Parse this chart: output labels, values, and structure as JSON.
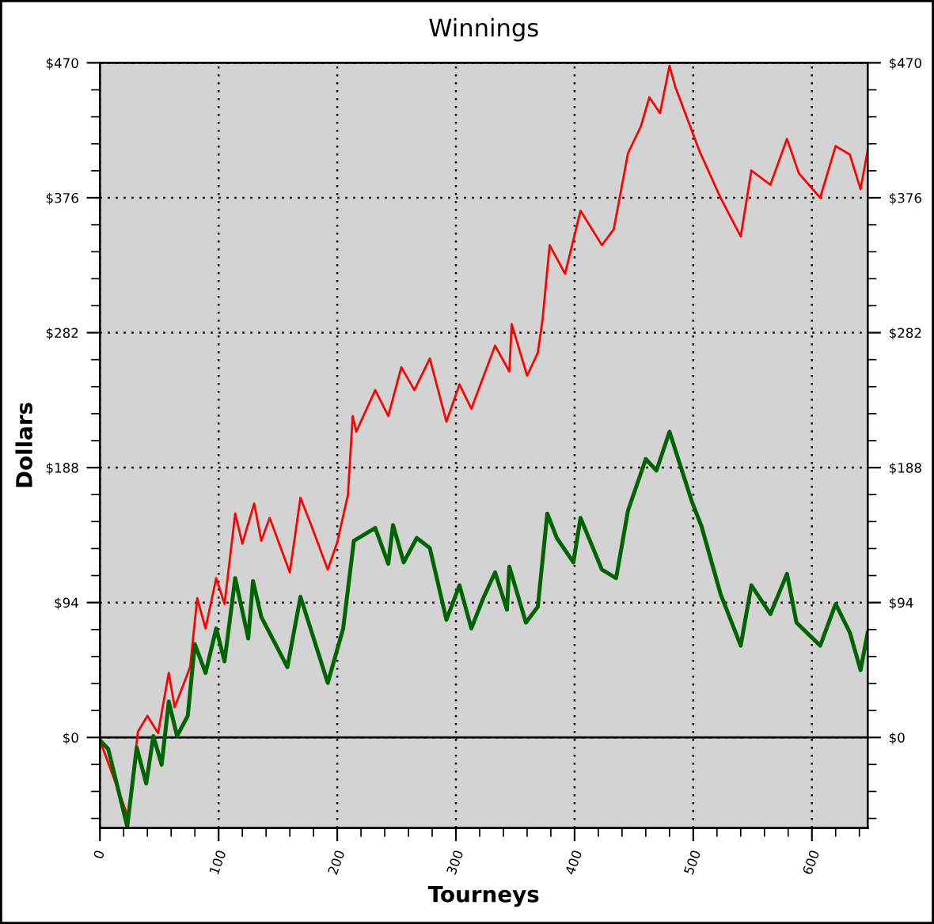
{
  "chart_data": {
    "type": "line",
    "title": "Winnings",
    "xlabel": "Tourneys",
    "ylabel": "Dollars",
    "xlim": [
      0,
      647
    ],
    "xticks": [
      0,
      100,
      200,
      300,
      400,
      500,
      600
    ],
    "ylim": [
      -63,
      470
    ],
    "yticks": [
      {
        "value": 0,
        "label": "$0"
      },
      {
        "value": 94,
        "label": "$94"
      },
      {
        "value": 188,
        "label": "$188"
      },
      {
        "value": 282,
        "label": "$282"
      },
      {
        "value": 376,
        "label": "$376"
      },
      {
        "value": 470,
        "label": "$470"
      }
    ],
    "y2lim": [
      -63,
      470
    ],
    "y2ticks": [
      {
        "value": 0,
        "label": "$0"
      },
      {
        "value": 94,
        "label": "$94"
      },
      {
        "value": 188,
        "label": "$188"
      },
      {
        "value": 282,
        "label": "$282"
      },
      {
        "value": 376,
        "label": "$376"
      },
      {
        "value": 470,
        "label": "$470"
      }
    ],
    "grid": true,
    "line_style": "solid",
    "marker": "none",
    "ref_lines": [
      {
        "axis": "y",
        "value": 0,
        "color": "#000000",
        "line_style": "solid"
      }
    ],
    "series": [
      {
        "color": "#ff0000",
        "x": [
          0,
          24,
          32,
          40,
          49,
          58,
          63,
          76,
          82,
          89,
          98,
          105,
          114,
          120,
          130,
          136,
          143,
          160,
          169,
          178,
          192,
          200,
          209,
          213,
          216,
          232,
          243,
          254,
          265,
          278,
          292,
          303,
          313,
          333,
          345,
          347,
          360,
          369,
          373,
          379,
          392,
          405,
          423,
          433,
          445,
          456,
          463,
          472,
          480,
          485,
          505,
          523,
          540,
          549,
          565,
          579,
          589,
          607,
          620,
          632,
          641,
          647
        ],
        "values": [
          -2,
          -56,
          4,
          15,
          3,
          45,
          21,
          49,
          97,
          76,
          111,
          93,
          156,
          135,
          163,
          137,
          153,
          115,
          167,
          148,
          117,
          136,
          169,
          224,
          213,
          242,
          224,
          258,
          242,
          264,
          220,
          246,
          229,
          273,
          255,
          288,
          252,
          268,
          291,
          343,
          323,
          367,
          343,
          354,
          407,
          426,
          446,
          435,
          468,
          453,
          409,
          376,
          349,
          395,
          385,
          417,
          393,
          376,
          412,
          406,
          382,
          409
        ]
      },
      {
        "color": "#006400",
        "x": [
          0,
          7,
          23,
          31,
          39,
          45,
          52,
          58,
          65,
          74,
          80,
          89,
          98,
          105,
          114,
          125,
          129,
          136,
          158,
          169,
          192,
          205,
          214,
          232,
          243,
          247,
          256,
          267,
          278,
          292,
          303,
          313,
          323,
          333,
          343,
          345,
          359,
          369,
          377,
          385,
          399,
          405,
          423,
          435,
          445,
          460,
          469,
          480,
          499,
          507,
          523,
          540,
          549,
          565,
          579,
          587,
          607,
          620,
          632,
          641,
          647
        ],
        "values": [
          -2,
          -8,
          -62,
          -7,
          -32,
          1,
          -19,
          25,
          1,
          15,
          65,
          45,
          76,
          53,
          111,
          69,
          109,
          84,
          49,
          98,
          38,
          76,
          137,
          146,
          121,
          148,
          122,
          139,
          132,
          82,
          106,
          76,
          97,
          115,
          89,
          119,
          80,
          91,
          156,
          139,
          122,
          153,
          117,
          111,
          158,
          194,
          186,
          213,
          164,
          147,
          100,
          64,
          106,
          86,
          114,
          80,
          64,
          93,
          73,
          47,
          73
        ]
      }
    ]
  }
}
